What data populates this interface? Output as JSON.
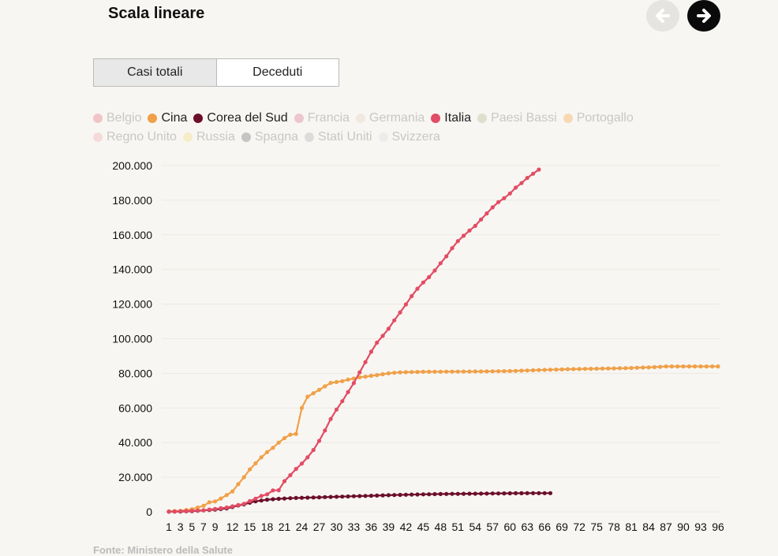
{
  "header": {
    "title": "Scala lineare"
  },
  "nav": {
    "prev": "arrow-left-icon",
    "next": "arrow-right-icon"
  },
  "tabs": [
    {
      "label": "Casi totali",
      "active": true
    },
    {
      "label": "Deceduti",
      "active": false
    }
  ],
  "legend": {
    "rows": [
      [
        {
          "label": "Belgio",
          "color": "#f2c4c8",
          "active": false
        },
        {
          "label": "Cina",
          "color": "#f0a048",
          "active": true
        },
        {
          "label": "Corea del Sud",
          "color": "#6b0f2a",
          "active": true
        },
        {
          "label": "Francia",
          "color": "#ecc6d0",
          "active": false
        },
        {
          "label": "Germania",
          "color": "#efe9e0",
          "active": false
        },
        {
          "label": "Italia",
          "color": "#e24c64",
          "active": true
        },
        {
          "label": "Paesi Bassi",
          "color": "#dde0cc",
          "active": false
        },
        {
          "label": "Portogallo",
          "color": "#f8d8b4",
          "active": false
        }
      ],
      [
        {
          "label": "Regno Unito",
          "color": "#f5dada",
          "active": false
        },
        {
          "label": "Russia",
          "color": "#f7ecc8",
          "active": false
        },
        {
          "label": "Spagna",
          "color": "#c4c4c4",
          "active": false
        },
        {
          "label": "Stati Uniti",
          "color": "#dcdcdc",
          "active": false
        },
        {
          "label": "Svizzera",
          "color": "#ececec",
          "active": false
        }
      ]
    ]
  },
  "source": "Fonte: Ministero della Salute",
  "chart_data": {
    "type": "line",
    "ylim": [
      0,
      200000
    ],
    "xlim": [
      1,
      96
    ],
    "yticks": [
      0,
      20000,
      40000,
      60000,
      80000,
      100000,
      120000,
      140000,
      160000,
      180000,
      200000
    ],
    "ytick_labels": [
      "0",
      "20.000",
      "40.000",
      "60.000",
      "80.000",
      "100.000",
      "120.000",
      "140.000",
      "160.000",
      "180.000",
      "200.000"
    ],
    "xticks": [
      1,
      3,
      5,
      7,
      9,
      12,
      15,
      18,
      21,
      24,
      27,
      30,
      33,
      36,
      39,
      42,
      45,
      48,
      51,
      54,
      57,
      60,
      63,
      66,
      69,
      72,
      75,
      78,
      81,
      84,
      87,
      90,
      93,
      96
    ],
    "grid": true,
    "series": [
      {
        "name": "Cina",
        "color": "#f0a048",
        "points": [
          [
            1,
            300
          ],
          [
            3,
            600
          ],
          [
            5,
            1500
          ],
          [
            7,
            3500
          ],
          [
            8,
            5500
          ],
          [
            9,
            6000
          ],
          [
            10,
            7700
          ],
          [
            11,
            9700
          ],
          [
            12,
            11800
          ],
          [
            13,
            16000
          ],
          [
            14,
            20000
          ],
          [
            15,
            24500
          ],
          [
            16,
            28000
          ],
          [
            17,
            31500
          ],
          [
            18,
            34500
          ],
          [
            19,
            37000
          ],
          [
            20,
            40000
          ],
          [
            21,
            42600
          ],
          [
            22,
            44600
          ],
          [
            23,
            45000
          ],
          [
            24,
            60000
          ],
          [
            25,
            66500
          ],
          [
            26,
            68500
          ],
          [
            27,
            70500
          ],
          [
            28,
            72500
          ],
          [
            29,
            74500
          ],
          [
            30,
            75000
          ],
          [
            31,
            75500
          ],
          [
            32,
            76400
          ],
          [
            33,
            77000
          ],
          [
            34,
            77700
          ],
          [
            35,
            78100
          ],
          [
            36,
            78600
          ],
          [
            37,
            79000
          ],
          [
            38,
            79500
          ],
          [
            39,
            80000
          ],
          [
            40,
            80300
          ],
          [
            41,
            80600
          ],
          [
            42,
            80700
          ],
          [
            45,
            80900
          ],
          [
            50,
            81000
          ],
          [
            55,
            81100
          ],
          [
            60,
            81300
          ],
          [
            65,
            81900
          ],
          [
            70,
            82400
          ],
          [
            75,
            82700
          ],
          [
            80,
            83000
          ],
          [
            85,
            83600
          ],
          [
            87,
            84000
          ],
          [
            96,
            84000
          ]
        ]
      },
      {
        "name": "Corea del Sud",
        "color": "#6b0f2a",
        "points": [
          [
            1,
            100
          ],
          [
            3,
            200
          ],
          [
            5,
            400
          ],
          [
            7,
            800
          ],
          [
            9,
            1300
          ],
          [
            11,
            2000
          ],
          [
            12,
            2800
          ],
          [
            13,
            3700
          ],
          [
            14,
            4300
          ],
          [
            15,
            5300
          ],
          [
            16,
            6100
          ],
          [
            17,
            6500
          ],
          [
            18,
            7000
          ],
          [
            19,
            7300
          ],
          [
            20,
            7500
          ],
          [
            21,
            7700
          ],
          [
            22,
            7900
          ],
          [
            24,
            8100
          ],
          [
            27,
            8400
          ],
          [
            30,
            8700
          ],
          [
            33,
            9000
          ],
          [
            36,
            9300
          ],
          [
            39,
            9600
          ],
          [
            42,
            9900
          ],
          [
            45,
            10100
          ],
          [
            48,
            10300
          ],
          [
            51,
            10400
          ],
          [
            54,
            10500
          ],
          [
            57,
            10600
          ],
          [
            60,
            10700
          ],
          [
            63,
            10800
          ],
          [
            66,
            10800
          ],
          [
            67,
            10800
          ]
        ]
      },
      {
        "name": "Italia",
        "color": "#e24c64",
        "points": [
          [
            1,
            100
          ],
          [
            3,
            300
          ],
          [
            5,
            600
          ],
          [
            7,
            900
          ],
          [
            9,
            1700
          ],
          [
            11,
            2500
          ],
          [
            13,
            3900
          ],
          [
            14,
            4600
          ],
          [
            15,
            6200
          ],
          [
            16,
            7600
          ],
          [
            17,
            9200
          ],
          [
            18,
            10100
          ],
          [
            19,
            12400
          ],
          [
            20,
            12500
          ],
          [
            21,
            17700
          ],
          [
            22,
            21200
          ],
          [
            23,
            24800
          ],
          [
            24,
            27900
          ],
          [
            25,
            31500
          ],
          [
            26,
            35700
          ],
          [
            27,
            41000
          ],
          [
            28,
            47000
          ],
          [
            29,
            53600
          ],
          [
            30,
            59100
          ],
          [
            31,
            63900
          ],
          [
            32,
            69200
          ],
          [
            33,
            74400
          ],
          [
            34,
            80600
          ],
          [
            35,
            86500
          ],
          [
            36,
            92500
          ],
          [
            37,
            97700
          ],
          [
            38,
            101700
          ],
          [
            39,
            105800
          ],
          [
            40,
            110600
          ],
          [
            41,
            115200
          ],
          [
            42,
            119800
          ],
          [
            43,
            124600
          ],
          [
            44,
            128900
          ],
          [
            45,
            132500
          ],
          [
            46,
            135600
          ],
          [
            47,
            139400
          ],
          [
            48,
            143600
          ],
          [
            49,
            147600
          ],
          [
            50,
            152300
          ],
          [
            51,
            156400
          ],
          [
            52,
            159500
          ],
          [
            53,
            162500
          ],
          [
            54,
            165200
          ],
          [
            55,
            168900
          ],
          [
            56,
            172400
          ],
          [
            57,
            175900
          ],
          [
            58,
            178900
          ],
          [
            59,
            181200
          ],
          [
            60,
            183900
          ],
          [
            61,
            187300
          ],
          [
            62,
            189900
          ],
          [
            63,
            192900
          ],
          [
            64,
            195300
          ],
          [
            65,
            197700
          ]
        ]
      }
    ]
  }
}
